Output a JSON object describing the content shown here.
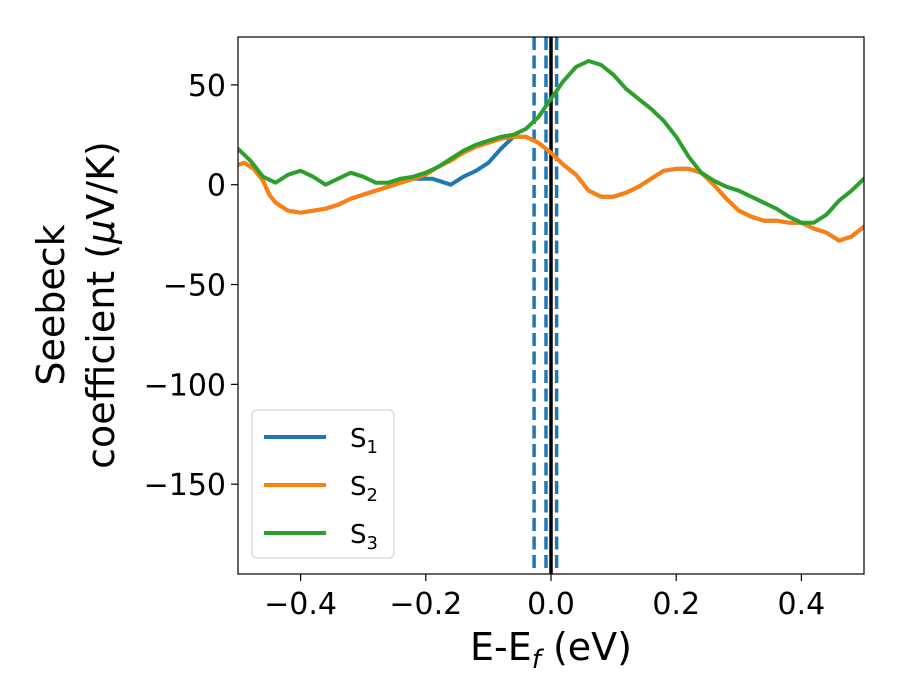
{
  "chart_data": {
    "type": "line",
    "xlabel": {
      "main": "E-E",
      "sub": "f",
      "unit": " (eV)"
    },
    "ylabel": {
      "line1": "Seebeck",
      "line2": "coefficient  (",
      "mu": "μ",
      "unit": "V/K)"
    },
    "xlim": [
      -0.5,
      0.5
    ],
    "ylim": [
      -195,
      74
    ],
    "xticks": [
      -0.4,
      -0.2,
      0.0,
      0.2,
      0.4
    ],
    "xtick_labels": [
      "−0.4",
      "−0.2",
      "0.0",
      "0.2",
      "0.4"
    ],
    "yticks": [
      50,
      0,
      -50,
      -100,
      -150
    ],
    "ytick_labels": [
      "50",
      "0",
      "−50",
      "−100",
      "−150"
    ],
    "grid": false,
    "legend": "lower-left",
    "vlines": [
      {
        "x": -0.027,
        "style": "dashed",
        "color": "#1f77b4"
      },
      {
        "x": -0.008,
        "style": "dashed",
        "color": "#1f77b4"
      },
      {
        "x": 0.009,
        "style": "dashed",
        "color": "#1f77b4"
      },
      {
        "x": 0.0,
        "style": "solid",
        "color": "#000000"
      }
    ],
    "series": [
      {
        "name": "S",
        "sub": "1",
        "color": "#1f77b4",
        "x": [
          -0.5,
          -0.49,
          -0.475,
          -0.46,
          -0.45,
          -0.44,
          -0.42,
          -0.4,
          -0.38,
          -0.36,
          -0.34,
          -0.32,
          -0.3,
          -0.28,
          -0.26,
          -0.24,
          -0.22,
          -0.2,
          -0.19,
          -0.18,
          -0.17,
          -0.16,
          -0.15,
          -0.14,
          -0.12,
          -0.1,
          -0.08,
          -0.06,
          -0.04,
          -0.02,
          0.0,
          0.02,
          0.04,
          0.06,
          0.08,
          0.1,
          0.12,
          0.14,
          0.16,
          0.18,
          0.2,
          0.22,
          0.24,
          0.26,
          0.28,
          0.3,
          0.32,
          0.34,
          0.36,
          0.38,
          0.4,
          0.42,
          0.44,
          0.46,
          0.48,
          0.5
        ],
        "y": [
          10,
          11,
          8,
          2,
          -5,
          -9,
          -13,
          -14,
          -13,
          -12,
          -10,
          -7,
          -5,
          -3,
          -1,
          1,
          3,
          3,
          3,
          2,
          1,
          0,
          2,
          4,
          7,
          11,
          18,
          24,
          24,
          21,
          16,
          10,
          5,
          -3,
          -6,
          -6,
          -4,
          -1,
          3,
          7,
          8,
          8,
          6,
          0,
          -7,
          -13,
          -16,
          -18,
          -18,
          -19,
          -19,
          -22,
          -24,
          -28,
          -26,
          -21
        ]
      },
      {
        "name": "S",
        "sub": "2",
        "color": "#ff7f0e",
        "x": [
          -0.5,
          -0.49,
          -0.475,
          -0.46,
          -0.45,
          -0.44,
          -0.42,
          -0.4,
          -0.38,
          -0.36,
          -0.34,
          -0.32,
          -0.3,
          -0.28,
          -0.26,
          -0.24,
          -0.22,
          -0.2,
          -0.18,
          -0.16,
          -0.14,
          -0.12,
          -0.1,
          -0.08,
          -0.06,
          -0.04,
          -0.02,
          0.0,
          0.02,
          0.04,
          0.06,
          0.08,
          0.1,
          0.12,
          0.14,
          0.16,
          0.18,
          0.2,
          0.22,
          0.24,
          0.26,
          0.28,
          0.3,
          0.32,
          0.34,
          0.36,
          0.38,
          0.4,
          0.42,
          0.44,
          0.46,
          0.48,
          0.5
        ],
        "y": [
          10,
          11,
          8,
          2,
          -5,
          -9,
          -13,
          -14,
          -13,
          -12,
          -10,
          -7,
          -5,
          -3,
          -1,
          1,
          3,
          5,
          9,
          12,
          16,
          19,
          21,
          23,
          24,
          24,
          21,
          16,
          10,
          5,
          -3,
          -6,
          -6,
          -4,
          -1,
          3,
          7,
          8,
          8,
          6,
          0,
          -7,
          -13,
          -16,
          -18,
          -18,
          -19,
          -19,
          -22,
          -24,
          -28,
          -26,
          -21
        ]
      },
      {
        "name": "S",
        "sub": "3",
        "color": "#2ca02c",
        "x": [
          -0.5,
          -0.48,
          -0.46,
          -0.44,
          -0.42,
          -0.4,
          -0.38,
          -0.36,
          -0.34,
          -0.32,
          -0.3,
          -0.28,
          -0.26,
          -0.24,
          -0.22,
          -0.2,
          -0.18,
          -0.16,
          -0.14,
          -0.12,
          -0.1,
          -0.08,
          -0.06,
          -0.04,
          -0.02,
          0.0,
          0.02,
          0.04,
          0.06,
          0.08,
          0.1,
          0.12,
          0.14,
          0.16,
          0.18,
          0.2,
          0.22,
          0.24,
          0.26,
          0.28,
          0.3,
          0.32,
          0.34,
          0.36,
          0.38,
          0.4,
          0.42,
          0.44,
          0.46,
          0.48,
          0.5
        ],
        "y": [
          18,
          12,
          4,
          1,
          5,
          7,
          4,
          0,
          3,
          6,
          4,
          1,
          1,
          3,
          4,
          6,
          9,
          13,
          17,
          20,
          22,
          24,
          25,
          28,
          34,
          43,
          52,
          59,
          62,
          60,
          55,
          48,
          43,
          38,
          32,
          24,
          14,
          6,
          2,
          -1,
          -3,
          -6,
          -9,
          -12,
          -16,
          -19,
          -19,
          -15,
          -8,
          -3,
          3
        ]
      }
    ]
  }
}
